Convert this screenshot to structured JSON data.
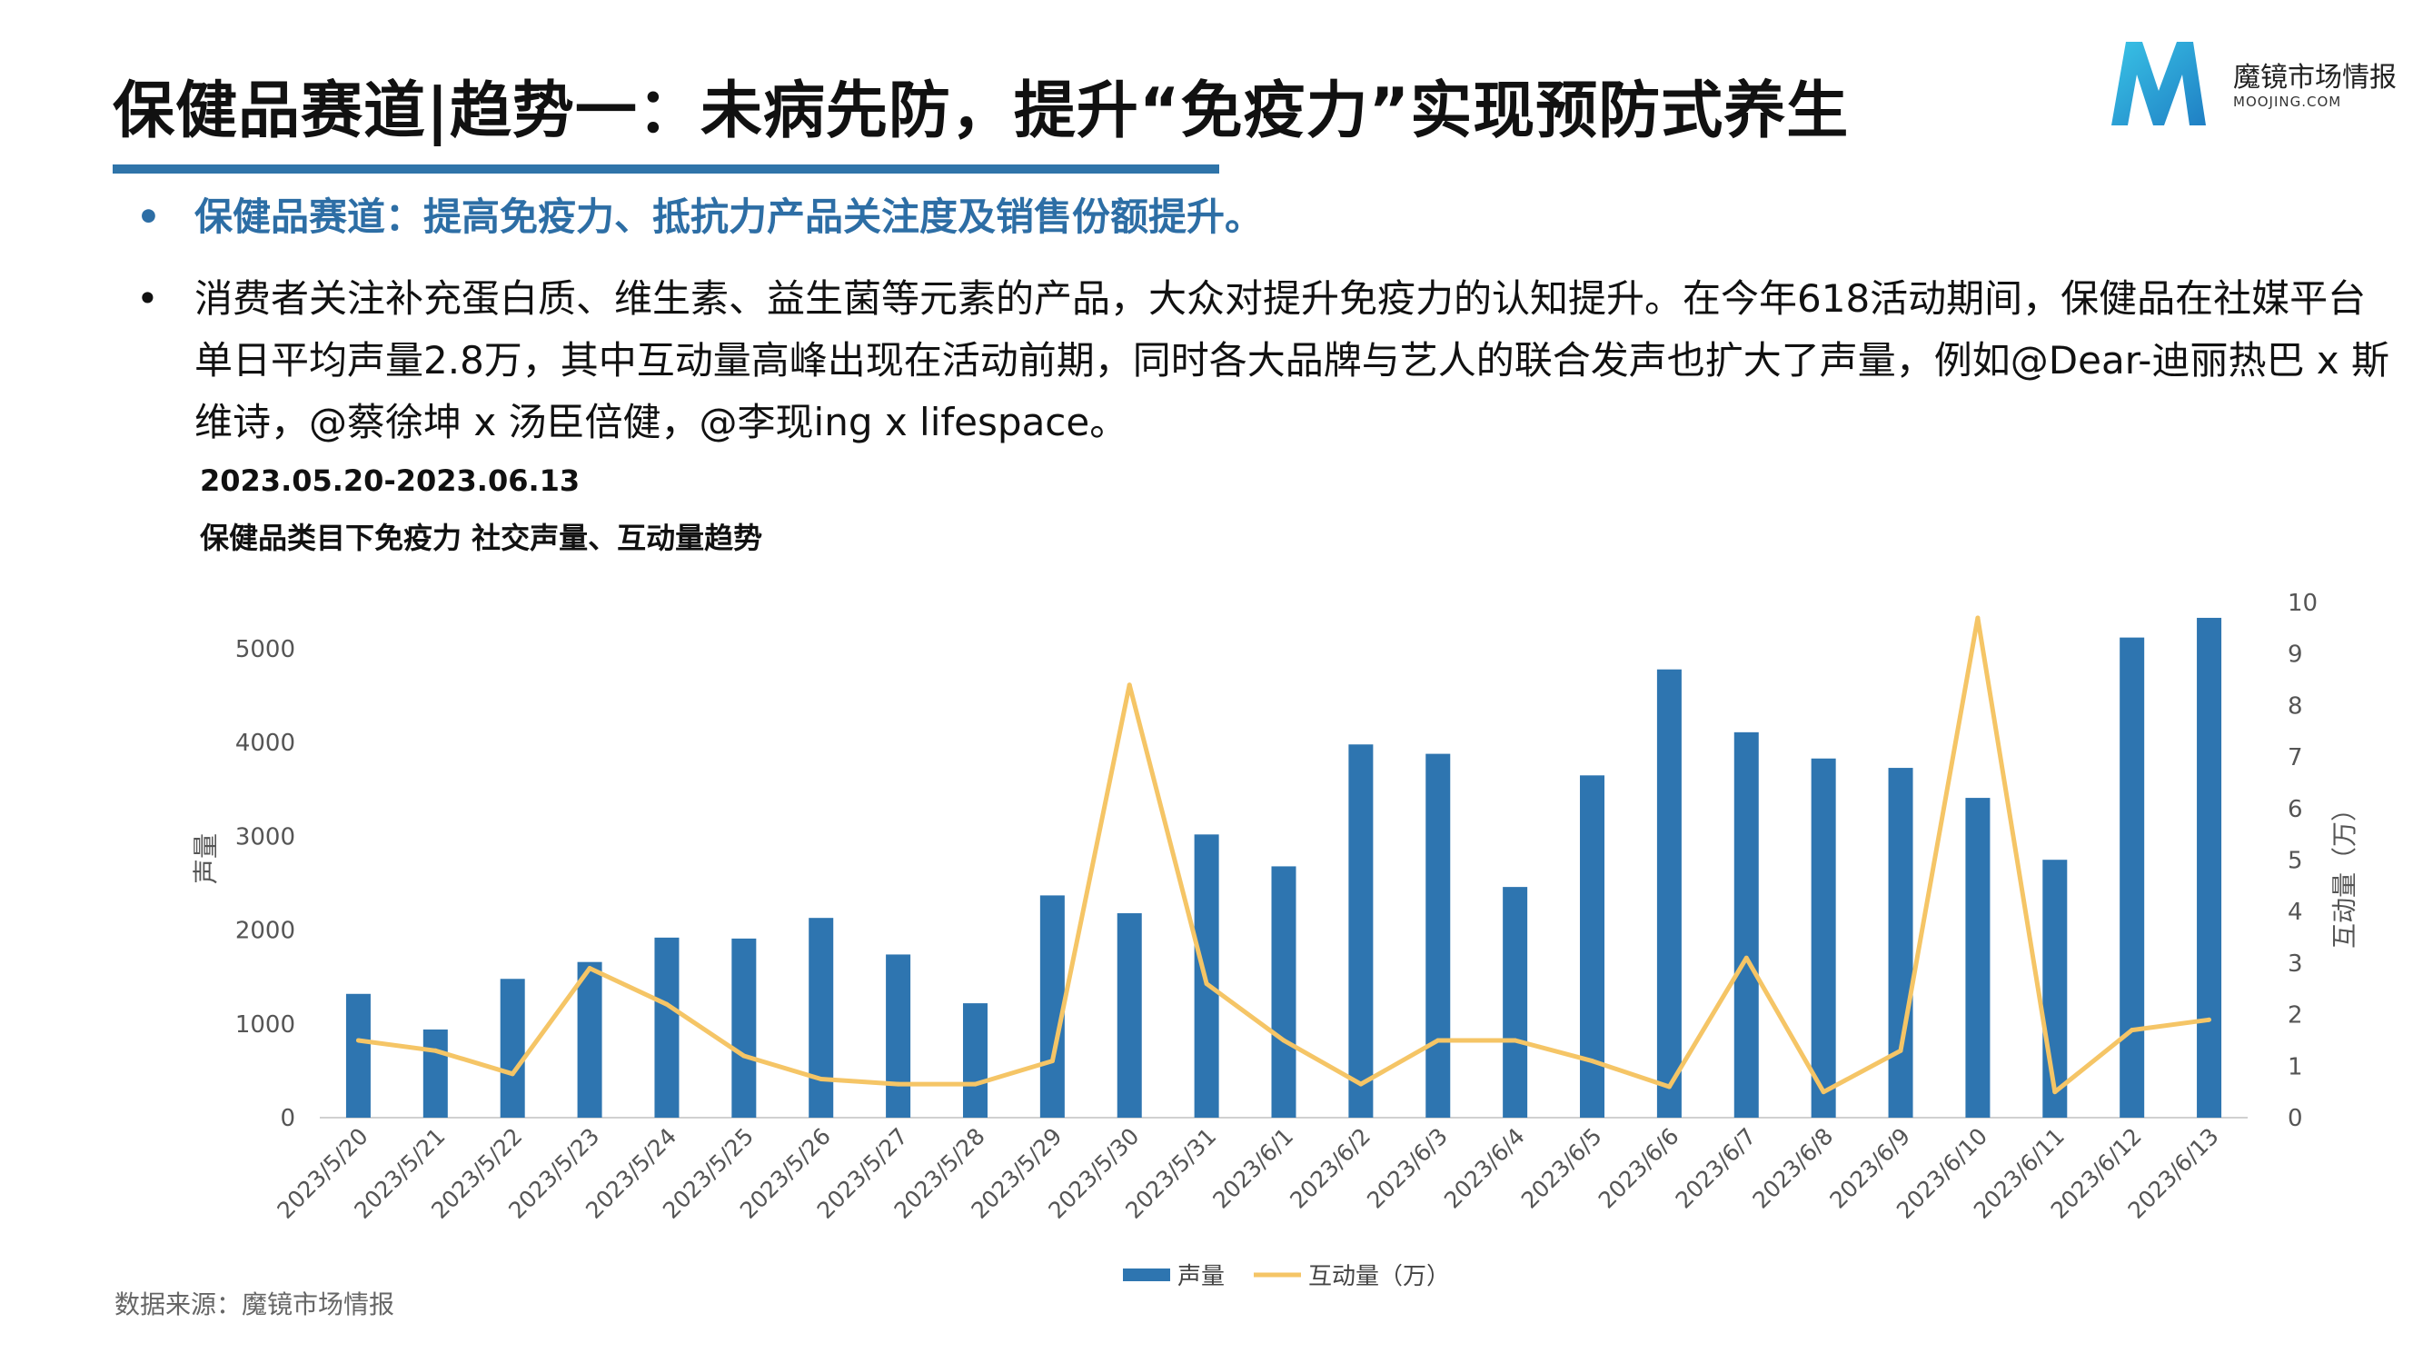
{
  "page": {
    "title": "保健品赛道|趋势一：未病先防，提升“免疫力”实现预防式养生",
    "logo_name": "魔镜市场情报",
    "logo_url": "MOOJING.COM",
    "bullet_highlight": "保健品赛道：提高免疫力、抵抗力产品关注度及销售份额提升。",
    "bullet_body": "消费者关注补充蛋白质、维生素、益生菌等元素的产品，大众对提升免疫力的认知提升。在今年618活动期间，保健品在社媒平台单日平均声量2.8万，其中互动量高峰出现在活动前期，同时各大品牌与艺人的联合发声也扩大了声量，例如@Dear-迪丽热巴 x 斯维诗，@蔡徐坤 x 汤臣倍健，@李现ing x lifespace。",
    "date_range": "2023.05.20-2023.06.13",
    "chart_heading": "保健品类目下免疫力 社交声量、互动量趋势",
    "source": "数据来源：魔镜市场情报",
    "colors": {
      "accent": "#2f74a9",
      "bar": "#2e75b0",
      "line": "#f5c566",
      "highlight_text": "#2d6ea5"
    }
  },
  "chart_data": {
    "type": "bar+line",
    "categories": [
      "2023/5/20",
      "2023/5/21",
      "2023/5/22",
      "2023/5/23",
      "2023/5/24",
      "2023/5/25",
      "2023/5/26",
      "2023/5/27",
      "2023/5/28",
      "2023/5/29",
      "2023/5/30",
      "2023/5/31",
      "2023/6/1",
      "2023/6/2",
      "2023/6/3",
      "2023/6/4",
      "2023/6/5",
      "2023/6/6",
      "2023/6/7",
      "2023/6/8",
      "2023/6/9",
      "2023/6/10",
      "2023/6/11",
      "2023/6/12",
      "2023/6/13"
    ],
    "series": [
      {
        "name": "声量",
        "type": "bar",
        "axis": "left",
        "values": [
          1320,
          940,
          1480,
          1660,
          1920,
          1910,
          2130,
          1740,
          1220,
          2370,
          2180,
          3020,
          2680,
          3980,
          3880,
          2460,
          3650,
          4780,
          4110,
          3830,
          3730,
          3410,
          2750,
          5120,
          5330
        ]
      },
      {
        "name": "互动量（万）",
        "type": "line",
        "axis": "right",
        "values": [
          1.5,
          1.3,
          0.85,
          2.9,
          2.2,
          1.2,
          0.75,
          0.65,
          0.65,
          1.1,
          8.4,
          2.6,
          1.5,
          0.65,
          1.5,
          1.5,
          1.1,
          0.6,
          3.1,
          0.5,
          1.3,
          9.7,
          0.5,
          1.7,
          1.9
        ]
      }
    ],
    "ylabel_left": "声量",
    "ylabel_right": "互动量（万）",
    "ylim_left": [
      0,
      5500
    ],
    "yticks_left": [
      0,
      1000,
      2000,
      3000,
      4000,
      5000
    ],
    "ylim_right": [
      0,
      10
    ],
    "yticks_right": [
      0,
      1,
      2,
      3,
      4,
      5,
      6,
      7,
      8,
      9,
      10
    ],
    "legend": [
      "声量",
      "互动量（万）"
    ],
    "legend_position": "bottom-center",
    "grid": false
  }
}
